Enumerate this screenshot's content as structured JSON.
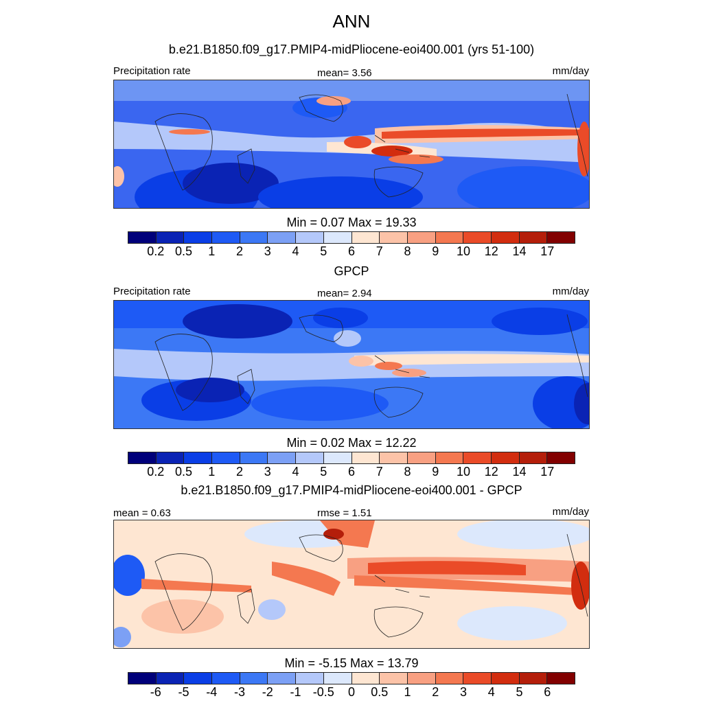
{
  "main_title": "ANN",
  "panels": [
    {
      "title": "b.e21.B1850.f09_g17.PMIP4-midPliocene-eoi400.001 (yrs 51-100)",
      "left_label": "Precipitation rate",
      "center_label": "mean=   3.56",
      "right_label": "mm/day",
      "minmax": "Min =    0.07 Max =  19.33",
      "colorbar_ticks": [
        "0.2",
        "0.5",
        "1",
        "2",
        "3",
        "4",
        "5",
        "6",
        "7",
        "8",
        "9",
        "10",
        "12",
        "14",
        "17"
      ],
      "map_type": "model"
    },
    {
      "title": "GPCP",
      "left_label": "Precipitation rate",
      "center_label": "mean=   2.94",
      "right_label": "mm/day",
      "minmax": "Min =    0.02 Max =  12.22",
      "colorbar_ticks": [
        "0.2",
        "0.5",
        "1",
        "2",
        "3",
        "4",
        "5",
        "6",
        "7",
        "8",
        "9",
        "10",
        "12",
        "14",
        "17"
      ],
      "map_type": "obs"
    },
    {
      "title": "b.e21.B1850.f09_g17.PMIP4-midPliocene-eoi400.001 - GPCP",
      "left_label": "mean =   0.63",
      "center_label": "rmse =   1.51",
      "right_label": "mm/day",
      "minmax": "Min =  -5.15 Max =  13.79",
      "colorbar_ticks": [
        "-6",
        "-5",
        "-4",
        "-3",
        "-2",
        "-1",
        "-0.5",
        "0",
        "0.5",
        "1",
        "2",
        "3",
        "4",
        "5",
        "6"
      ],
      "map_type": "diff"
    }
  ],
  "colors": {
    "palette": [
      "#00007a",
      "#0a23b4",
      "#0a3ee6",
      "#1e5af5",
      "#3c78f5",
      "#7ca0f5",
      "#b4c8fa",
      "#dce8fc",
      "#fee6d2",
      "#fcc3a8",
      "#f8a082",
      "#f47850",
      "#ea4b28",
      "#d22d0f",
      "#b41e0a",
      "#820000"
    ]
  }
}
